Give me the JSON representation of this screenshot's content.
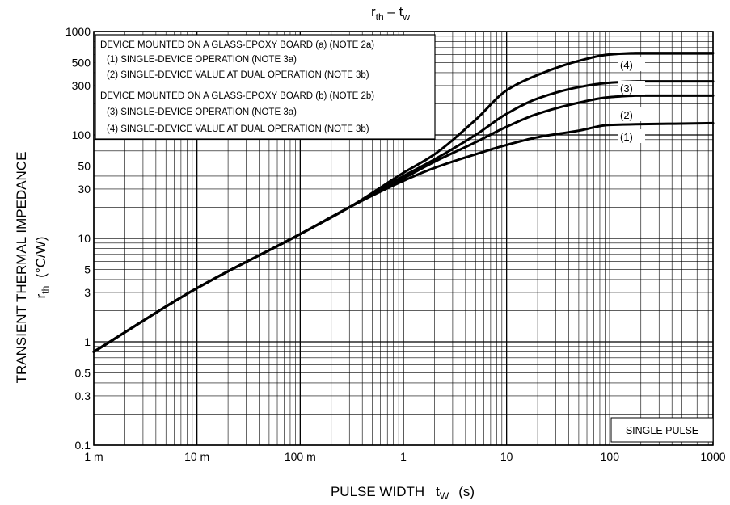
{
  "chart_data": {
    "type": "line",
    "title": {
      "main": "r",
      "main_sub": "th",
      "dash": " – ",
      "main2": "t",
      "main2_sub": "w"
    },
    "xlabel": {
      "text": "PULSE WIDTH",
      "sym": "t",
      "sym_sub": "W",
      "unit": "(s)"
    },
    "ylabel": {
      "line1": "TRANSIENT THERMAL IMPEDANCE",
      "sym": "r",
      "sym_sub": "th",
      "unit": "(°C/W)"
    },
    "x_scale": "log",
    "y_scale": "log",
    "xlim": [
      0.001,
      1000
    ],
    "ylim": [
      0.1,
      1000
    ],
    "x_ticks": [
      {
        "value": 0.001,
        "label": "1 m"
      },
      {
        "value": 0.01,
        "label": "10 m"
      },
      {
        "value": 0.1,
        "label": "100 m"
      },
      {
        "value": 1,
        "label": "1"
      },
      {
        "value": 10,
        "label": "10"
      },
      {
        "value": 100,
        "label": "100"
      },
      {
        "value": 1000,
        "label": "1000"
      }
    ],
    "y_ticks": [
      {
        "value": 0.1,
        "label": "0.1"
      },
      {
        "value": 0.3,
        "label": "0.3"
      },
      {
        "value": 0.5,
        "label": "0.5"
      },
      {
        "value": 1,
        "label": "1"
      },
      {
        "value": 3,
        "label": "3"
      },
      {
        "value": 5,
        "label": "5"
      },
      {
        "value": 10,
        "label": "10"
      },
      {
        "value": 30,
        "label": "30"
      },
      {
        "value": 50,
        "label": "50"
      },
      {
        "value": 100,
        "label": "100"
      },
      {
        "value": 300,
        "label": "300"
      },
      {
        "value": 500,
        "label": "500"
      },
      {
        "value": 1000,
        "label": "1000"
      }
    ],
    "grid": true,
    "legend_position": "top-left",
    "legend_lines": [
      "DEVICE MOUNTED ON A GLASS-EPOXY BOARD (a) (NOTE 2a)",
      "(1)   SINGLE-DEVICE OPERATION (NOTE 3a)",
      "(2)   SINGLE-DEVICE VALUE AT DUAL OPERATION (NOTE 3b)",
      "DEVICE MOUNTED ON A GLASS-EPOXY BOARD (b) (NOTE 2b)",
      "(3)   SINGLE-DEVICE OPERATION (NOTE 3a)",
      "(4)   SINGLE-DEVICE VALUE AT DUAL OPERATION (NOTE 3b)"
    ],
    "annotation": "SINGLE PULSE",
    "series": [
      {
        "name": "(1)",
        "x": [
          0.001,
          0.01,
          0.1,
          0.3,
          1,
          2,
          5,
          10,
          20,
          50,
          100,
          1000
        ],
        "y": [
          0.8,
          3.3,
          11,
          20,
          36,
          48,
          65,
          80,
          95,
          110,
          125,
          130
        ]
      },
      {
        "name": "(2)",
        "x": [
          0.001,
          0.01,
          0.1,
          0.3,
          1,
          2,
          5,
          10,
          20,
          50,
          100,
          200,
          1000
        ],
        "y": [
          0.8,
          3.3,
          11,
          20,
          38,
          55,
          85,
          120,
          160,
          205,
          232,
          240,
          240
        ]
      },
      {
        "name": "(3)",
        "x": [
          0.001,
          0.01,
          0.1,
          0.3,
          1,
          2,
          5,
          10,
          20,
          50,
          100,
          200,
          1000
        ],
        "y": [
          0.8,
          3.3,
          11,
          20,
          40,
          58,
          100,
          160,
          225,
          290,
          320,
          330,
          330
        ]
      },
      {
        "name": "(4)",
        "x": [
          0.001,
          0.01,
          0.1,
          0.3,
          1,
          2,
          5,
          10,
          20,
          50,
          100,
          200,
          1000
        ],
        "y": [
          0.8,
          3.3,
          11,
          20,
          43,
          65,
          140,
          270,
          380,
          520,
          600,
          620,
          620
        ]
      }
    ]
  }
}
